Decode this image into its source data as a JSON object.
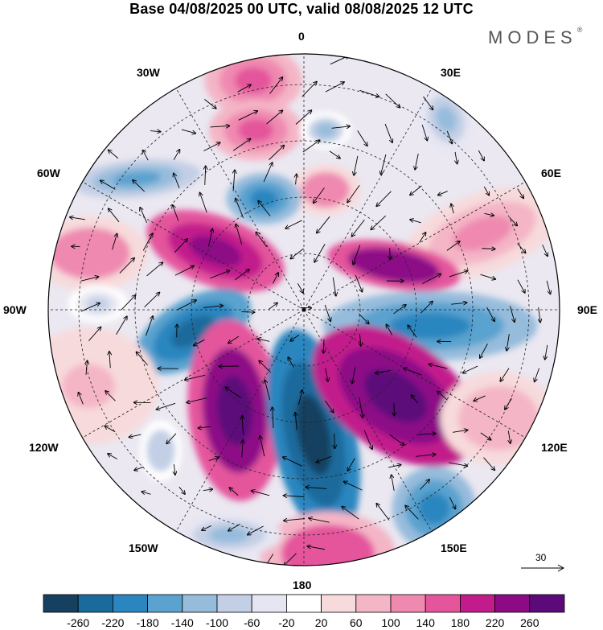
{
  "title": "Base 04/08/2025 00 UTC, valid 08/08/2025 12 UTC",
  "logo": {
    "text": "MODES",
    "mark": "®"
  },
  "longitude_labels": {
    "lon_0": "0",
    "lon_30e": "30E",
    "lon_60e": "60E",
    "lon_90e": "90E",
    "lon_120e": "120E",
    "lon_150e": "150E",
    "lon_180": "180",
    "lon_150w": "150W",
    "lon_120w": "120W",
    "lon_90w": "90W",
    "lon_60w": "60W",
    "lon_30w": "30W"
  },
  "reference_vector": {
    "value": "30"
  },
  "colorbar": {
    "labels": [
      "-260",
      "-220",
      "-180",
      "-140",
      "-100",
      "-60",
      "-20",
      "20",
      "60",
      "100",
      "140",
      "180",
      "220",
      "260"
    ],
    "colors": [
      "#16405f",
      "#1a6a9c",
      "#2b86bf",
      "#5aa2cf",
      "#96bcdc",
      "#c3cfe5",
      "#e6e6f2",
      "#ffffff",
      "#f7dadb",
      "#f4b5c6",
      "#ef89b0",
      "#e4559c",
      "#c21c8c",
      "#8d0a87",
      "#5c0a7a"
    ]
  },
  "anomalies": [
    {
      "name": "anom-pos-0-north",
      "value": 120
    },
    {
      "name": "anom-pos-near-pole",
      "value": 100
    },
    {
      "name": "anom-neg-10e",
      "value": -80
    },
    {
      "name": "anom-neg-40e",
      "value": -100
    },
    {
      "name": "anom-neg-50w",
      "value": -140
    },
    {
      "name": "anom-neg-30w-center",
      "value": -180
    },
    {
      "name": "anom-pos-70w",
      "value": 100
    },
    {
      "name": "anom-pos-45w-strong",
      "value": 200
    },
    {
      "name": "anom-pos-60e-pink",
      "value": 80
    },
    {
      "name": "anom-pos-70e-strong",
      "value": 220
    },
    {
      "name": "anom-neg-90e-band",
      "value": -180
    },
    {
      "name": "anom-neg-100w-ring",
      "value": -60
    },
    {
      "name": "anom-neg-100w-strong",
      "value": -220
    },
    {
      "name": "anom-pos-150w-strong",
      "value": 230
    },
    {
      "name": "anom-neg-175e-strong",
      "value": -250
    },
    {
      "name": "anom-pos-130e-strong",
      "value": 240
    },
    {
      "name": "anom-pos-180-south",
      "value": 140
    },
    {
      "name": "anom-neg-145e-south",
      "value": -180
    },
    {
      "name": "anom-neg-155w-south",
      "value": -100
    },
    {
      "name": "anom-neg-125w",
      "value": -70
    },
    {
      "name": "anom-pos-120w-west",
      "value": 40
    },
    {
      "name": "anom-pos-110e-south",
      "value": 60
    }
  ]
}
